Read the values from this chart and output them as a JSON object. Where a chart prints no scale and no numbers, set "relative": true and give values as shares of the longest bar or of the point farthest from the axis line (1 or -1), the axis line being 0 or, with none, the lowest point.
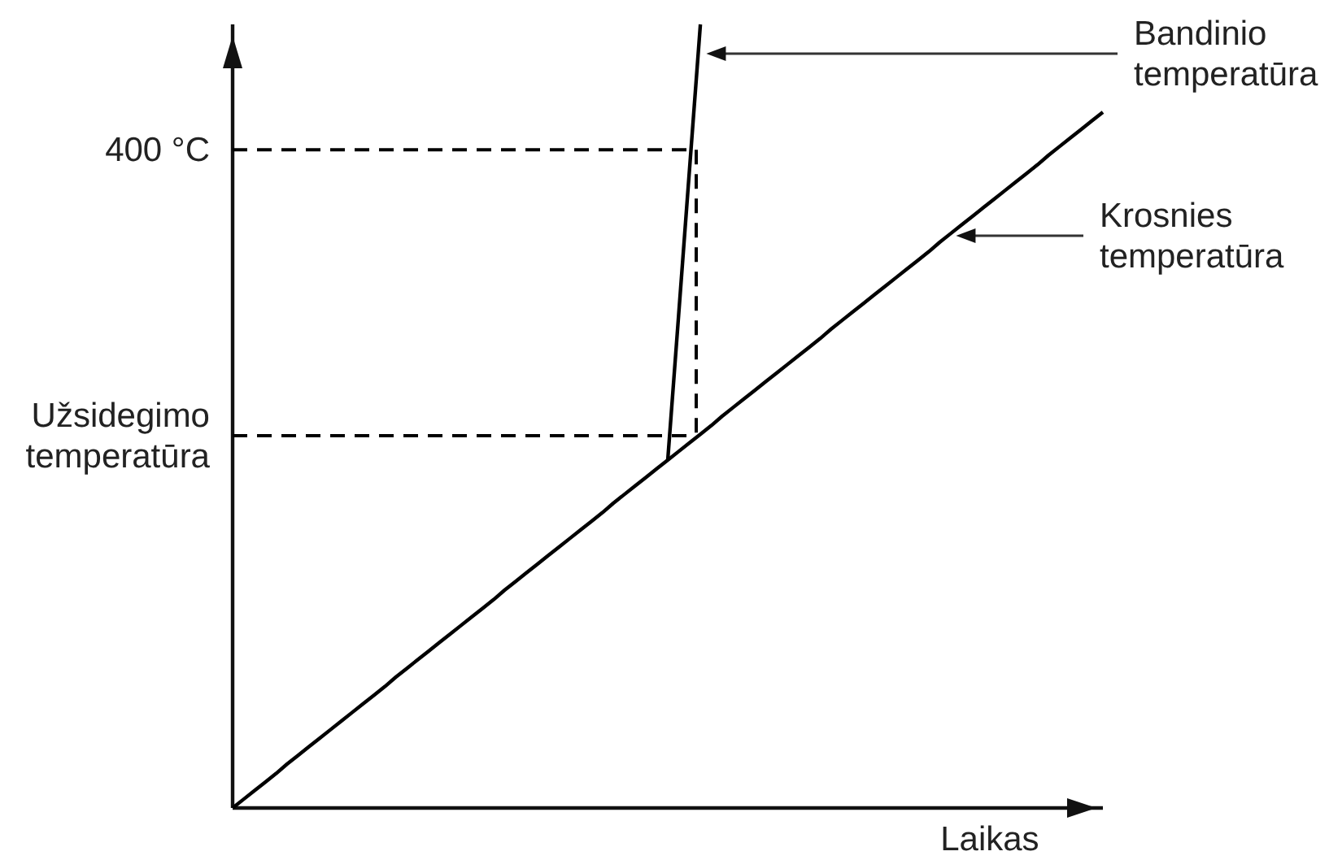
{
  "chart_data": {
    "type": "line",
    "relative": true,
    "xlabel": "Laikas",
    "categories": [
      null,
      null,
      null,
      null,
      null,
      null,
      null,
      null,
      null,
      null,
      null,
      null,
      null,
      null,
      null,
      null,
      null,
      null,
      null,
      null,
      null,
      null,
      null,
      null,
      null,
      null,
      null,
      null,
      null,
      null,
      null,
      null,
      null,
      null,
      null,
      null,
      null,
      null,
      null,
      null,
      null,
      null,
      null,
      null,
      null,
      null,
      null,
      null,
      null,
      null,
      null,
      null,
      null,
      null,
      null,
      null,
      null,
      null,
      null,
      null,
      null,
      null,
      null,
      null,
      null,
      null,
      null,
      null,
      null,
      null,
      null,
      null,
      null,
      null,
      null,
      null,
      null,
      null,
      null,
      null,
      null
    ],
    "series": [
      {
        "name": "Krosnies temperatūra",
        "color": "#000000",
        "values": [
          0,
          0.011,
          0.022,
          0.033,
          0.044,
          0.056,
          0.067,
          0.078,
          0.089,
          0.1,
          0.111,
          0.122,
          0.133,
          0.144,
          0.155,
          0.167,
          0.178,
          0.189,
          0.2,
          0.211,
          0.222,
          0.233,
          0.244,
          0.255,
          0.266,
          0.278,
          0.289,
          0.3,
          0.311,
          0.322,
          0.333,
          0.344,
          0.355,
          0.366,
          0.377,
          0.389,
          0.4,
          0.411,
          0.422,
          0.433,
          0.444,
          0.455,
          0.466,
          0.477,
          0.488,
          0.5,
          0.511,
          0.522,
          0.533,
          0.544,
          0.555,
          0.566,
          0.577,
          0.588,
          0.599,
          0.611,
          0.622,
          0.633,
          0.644,
          0.655,
          0.666,
          0.677,
          0.688,
          0.699,
          0.71,
          0.722,
          0.733,
          0.744,
          0.755,
          0.766,
          0.777,
          0.788,
          0.799,
          0.81,
          0.821,
          0.833,
          0.844,
          0.855,
          0.866,
          0.877,
          0.888
        ]
      },
      {
        "name": "Bandinio temperatūra",
        "color": "#000000",
        "values": [
          null,
          null,
          null,
          null,
          null,
          null,
          null,
          null,
          null,
          null,
          null,
          null,
          null,
          null,
          null,
          null,
          null,
          null,
          null,
          null,
          null,
          null,
          null,
          null,
          null,
          null,
          null,
          null,
          null,
          null,
          null,
          null,
          null,
          null,
          null,
          null,
          null,
          null,
          null,
          null,
          0.444,
          0.629,
          0.815,
          1,
          null,
          null,
          null,
          null,
          null,
          null,
          null,
          null,
          null,
          null,
          null,
          null,
          null,
          null,
          null,
          null,
          null,
          null,
          null,
          null,
          null,
          null,
          null,
          null,
          null,
          null,
          null,
          null,
          null,
          null,
          null,
          null,
          null,
          null,
          null,
          null,
          null
        ]
      }
    ],
    "ref_lines": [
      {
        "axis": "y",
        "value": 0.84,
        "label": "400 °C",
        "line_style": "dashed",
        "color": "#000000"
      },
      {
        "axis": "y",
        "value": 0.475,
        "label": "Užsidegimo temperatūra",
        "line_style": "dashed",
        "color": "#000000"
      }
    ]
  }
}
